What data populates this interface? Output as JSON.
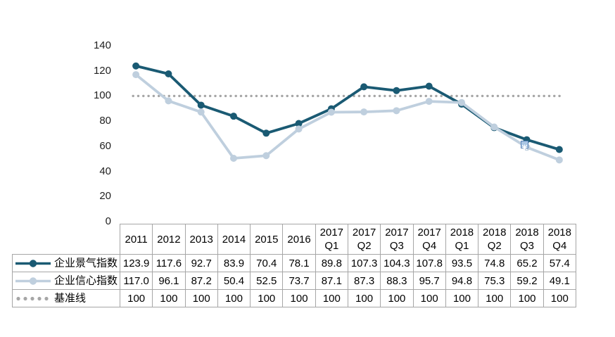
{
  "chart_data": {
    "type": "line",
    "title": "",
    "xlabel": "",
    "ylabel": "",
    "ylim": [
      0,
      140
    ],
    "yticks": [
      0,
      20,
      40,
      60,
      80,
      100,
      120,
      140
    ],
    "grid": false,
    "legend_position": "table-left",
    "categories": [
      "2011",
      "2012",
      "2013",
      "2014",
      "2015",
      "2016",
      "2017 Q1",
      "2017 Q2",
      "2017 Q3",
      "2017 Q4",
      "2018 Q1",
      "2018 Q2",
      "2018 Q3",
      "2018 Q4"
    ],
    "series": [
      {
        "name": "企业景气指数",
        "color": "#1a5a73",
        "line_style": "solid",
        "marker": "circle",
        "values": [
          123.9,
          117.6,
          92.7,
          83.9,
          70.4,
          78.1,
          89.8,
          107.3,
          104.3,
          107.8,
          93.5,
          74.8,
          65.2,
          57.4
        ],
        "labels": [
          "123.9",
          "117.6",
          "92.7",
          "83.9",
          "70.4",
          "78.1",
          "89.8",
          "107.3",
          "104.3",
          "107.8",
          "93.5",
          "74.8",
          "65.2",
          "57.4"
        ]
      },
      {
        "name": "企业信心指数",
        "color": "#bfcfde",
        "line_style": "solid",
        "marker": "circle",
        "values": [
          117.0,
          96.1,
          87.2,
          50.4,
          52.5,
          73.7,
          87.1,
          87.3,
          88.3,
          95.7,
          94.8,
          75.3,
          59.2,
          49.1
        ],
        "labels": [
          "117.0",
          "96.1",
          "87.2",
          "50.4",
          "52.5",
          "73.7",
          "87.1",
          "87.3",
          "88.3",
          "95.7",
          "94.8",
          "75.3",
          "59.2",
          "49.1"
        ]
      },
      {
        "name": "基准线",
        "color": "#a6a6a6",
        "line_style": "dotted",
        "marker": "none",
        "values": [
          100,
          100,
          100,
          100,
          100,
          100,
          100,
          100,
          100,
          100,
          100,
          100,
          100,
          100
        ],
        "labels": [
          "100",
          "100",
          "100",
          "100",
          "100",
          "100",
          "100",
          "100",
          "100",
          "100",
          "100",
          "100",
          "100",
          "100"
        ]
      }
    ]
  },
  "icons": {
    "broken_image_icon": "broken-image-placeholder",
    "series_solid_marker": "line-with-dot-marker",
    "series_dotted_marker": "dotted-line-marker"
  },
  "colors": {
    "series1": "#1a5a73",
    "series2": "#bfcfde",
    "baseline": "#a6a6a6",
    "table_border": "#a6a6a6",
    "text": "#000000"
  }
}
